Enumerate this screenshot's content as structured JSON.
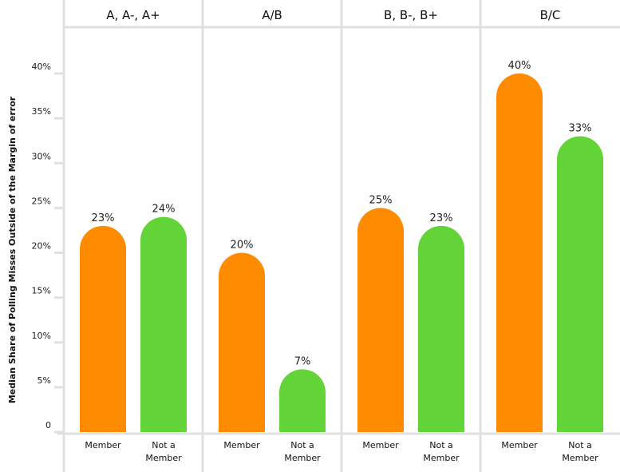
{
  "chart_data": {
    "type": "bar",
    "title": "",
    "ylabel": "Median Share of Polling Misses Outside of the Margin of error",
    "xlabel": "",
    "ylim": [
      0,
      44
    ],
    "yticks": [
      0,
      5,
      10,
      15,
      20,
      25,
      30,
      35,
      40
    ],
    "ytick_labels": [
      "0",
      "5%",
      "10%",
      "15%",
      "20%",
      "25%",
      "30%",
      "35%",
      "40%"
    ],
    "grid": false,
    "panels": [
      {
        "title": "A, A-, A+",
        "categories": [
          "Member",
          "Not a Member"
        ],
        "values": [
          23,
          24
        ],
        "labels": [
          "23%",
          "24%"
        ]
      },
      {
        "title": "A/B",
        "categories": [
          "Member",
          "Not a Member"
        ],
        "values": [
          20,
          7
        ],
        "labels": [
          "20%",
          "7%"
        ]
      },
      {
        "title": "B, B-, B+",
        "categories": [
          "Member",
          "Not a Member"
        ],
        "values": [
          25,
          23
        ],
        "labels": [
          "25%",
          "23%"
        ]
      },
      {
        "title": "B/C",
        "categories": [
          "Member",
          "Not a Member"
        ],
        "values": [
          40,
          33
        ],
        "labels": [
          "40%",
          "33%"
        ]
      }
    ],
    "series_colors": {
      "Member": "#FF8C00",
      "Not a Member": "#63D437"
    },
    "category_lines": {
      "Member": [
        "Member"
      ],
      "Not a Member": [
        "Not a",
        "Member"
      ]
    },
    "grid_color": "#E0E0E0"
  }
}
